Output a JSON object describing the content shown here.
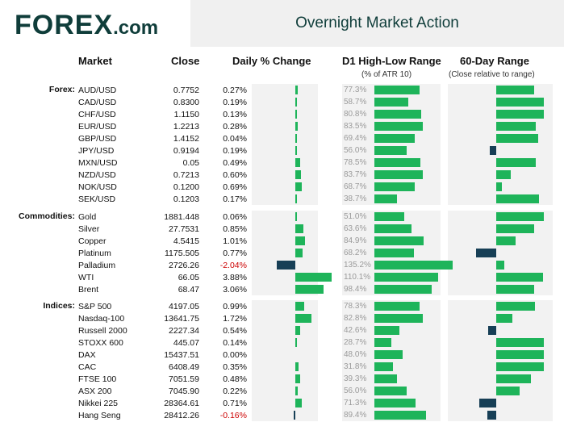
{
  "logo": {
    "brand_text": "FOREX",
    "domain_text": ".com"
  },
  "title": "Overnight Market Action",
  "headers": {
    "market": "Market",
    "close": "Close",
    "daily": "Daily % Change",
    "range": "D1 High-Low Range",
    "range_sub": "(% of ATR 10)",
    "sixty": "60-Day Range",
    "sixty_sub": "(Close relative to range)"
  },
  "colors": {
    "positive": "#1eb45a",
    "negative": "#173f56",
    "panel": "#f2f2f2",
    "negative_text": "#cc0000"
  },
  "chart_data": {
    "type": "table",
    "title": "Overnight Market Action",
    "columns": [
      "Market",
      "Close",
      "Daily % Change",
      "D1 High-Low Range (% of ATR 10)",
      "60-Day Range (Close relative to range)"
    ],
    "groups": [
      {
        "label": "Forex:",
        "rows": [
          {
            "market": "AUD/USD",
            "close": "0.7752",
            "change": "0.27%",
            "change_value": 0.27,
            "atr": "77.3%",
            "atr_value": 77.3,
            "range60": 0.79
          },
          {
            "market": "CAD/USD",
            "close": "0.8300",
            "change": "0.19%",
            "change_value": 0.19,
            "atr": "58.7%",
            "atr_value": 58.7,
            "range60": 0.98
          },
          {
            "market": "CHF/USD",
            "close": "1.1150",
            "change": "0.13%",
            "change_value": 0.13,
            "atr": "80.8%",
            "atr_value": 80.8,
            "range60": 0.99
          },
          {
            "market": "EUR/USD",
            "close": "1.2213",
            "change": "0.28%",
            "change_value": 0.28,
            "atr": "83.5%",
            "atr_value": 83.5,
            "range60": 0.82
          },
          {
            "market": "GBP/USD",
            "close": "1.4152",
            "change": "0.04%",
            "change_value": 0.04,
            "atr": "69.4%",
            "atr_value": 69.4,
            "range60": 0.86
          },
          {
            "market": "JPY/USD",
            "close": "0.9194",
            "change": "0.19%",
            "change_value": 0.19,
            "atr": "56.0%",
            "atr_value": 56.0,
            "range60": -0.14
          },
          {
            "market": "MXN/USD",
            "close": "0.05",
            "change": "0.49%",
            "change_value": 0.49,
            "atr": "78.5%",
            "atr_value": 78.5,
            "range60": 0.81
          },
          {
            "market": "NZD/USD",
            "close": "0.7213",
            "change": "0.60%",
            "change_value": 0.6,
            "atr": "83.7%",
            "atr_value": 83.7,
            "range60": 0.3
          },
          {
            "market": "NOK/USD",
            "close": "0.1200",
            "change": "0.69%",
            "change_value": 0.69,
            "atr": "68.7%",
            "atr_value": 68.7,
            "range60": 0.12
          },
          {
            "market": "SEK/USD",
            "close": "0.1203",
            "change": "0.17%",
            "change_value": 0.17,
            "atr": "38.7%",
            "atr_value": 38.7,
            "range60": 0.89
          }
        ]
      },
      {
        "label": "Commodities:",
        "rows": [
          {
            "market": "Gold",
            "close": "1881.448",
            "change": "0.06%",
            "change_value": 0.06,
            "atr": "51.0%",
            "atr_value": 51.0,
            "range60": 0.99
          },
          {
            "market": "Silver",
            "close": "27.7531",
            "change": "0.85%",
            "change_value": 0.85,
            "atr": "63.6%",
            "atr_value": 63.6,
            "range60": 0.79
          },
          {
            "market": "Copper",
            "close": "4.5415",
            "change": "1.01%",
            "change_value": 1.01,
            "atr": "84.9%",
            "atr_value": 84.9,
            "range60": 0.4
          },
          {
            "market": "Platinum",
            "close": "1175.505",
            "change": "0.77%",
            "change_value": 0.77,
            "atr": "68.2%",
            "atr_value": 68.2,
            "range60": -0.42
          },
          {
            "market": "Palladium",
            "close": "2726.26",
            "change": "-2.04%",
            "change_value": -2.04,
            "atr": "135.2%",
            "atr_value": 135.2,
            "range60": 0.16
          },
          {
            "market": "WTI",
            "close": "66.05",
            "change": "3.88%",
            "change_value": 3.88,
            "atr": "110.1%",
            "atr_value": 110.1,
            "range60": 0.97
          },
          {
            "market": "Brent",
            "close": "68.47",
            "change": "3.06%",
            "change_value": 3.06,
            "atr": "98.4%",
            "atr_value": 98.4,
            "range60": 0.78
          }
        ]
      },
      {
        "label": "Indices:",
        "rows": [
          {
            "market": "S&P 500",
            "close": "4197.05",
            "change": "0.99%",
            "change_value": 0.99,
            "atr": "78.3%",
            "atr_value": 78.3,
            "range60": 0.8
          },
          {
            "market": "Nasdaq-100",
            "close": "13641.75",
            "change": "1.72%",
            "change_value": 1.72,
            "atr": "82.8%",
            "atr_value": 82.8,
            "range60": 0.34
          },
          {
            "market": "Russell 2000",
            "close": "2227.34",
            "change": "0.54%",
            "change_value": 0.54,
            "atr": "42.6%",
            "atr_value": 42.6,
            "range60": -0.16
          },
          {
            "market": "STOXX 600",
            "close": "445.07",
            "change": "0.14%",
            "change_value": 0.14,
            "atr": "28.7%",
            "atr_value": 28.7,
            "range60": 0.99
          },
          {
            "market": "DAX",
            "close": "15437.51",
            "change": "0.00%",
            "change_value": 0.0,
            "atr": "48.0%",
            "atr_value": 48.0,
            "range60": 0.99
          },
          {
            "market": "CAC",
            "close": "6408.49",
            "change": "0.35%",
            "change_value": 0.35,
            "atr": "31.8%",
            "atr_value": 31.8,
            "range60": 0.99
          },
          {
            "market": "FTSE 100",
            "close": "7051.59",
            "change": "0.48%",
            "change_value": 0.48,
            "atr": "39.3%",
            "atr_value": 39.3,
            "range60": 0.72
          },
          {
            "market": "ASX 200",
            "close": "7045.90",
            "change": "0.22%",
            "change_value": 0.22,
            "atr": "56.0%",
            "atr_value": 56.0,
            "range60": 0.48
          },
          {
            "market": "Nikkei 225",
            "close": "28364.61",
            "change": "0.71%",
            "change_value": 0.71,
            "atr": "71.3%",
            "atr_value": 71.3,
            "range60": -0.35
          },
          {
            "market": "Hang Seng",
            "close": "28412.26",
            "change": "-0.16%",
            "change_value": -0.16,
            "atr": "89.4%",
            "atr_value": 89.4,
            "range60": -0.19
          }
        ]
      }
    ]
  }
}
